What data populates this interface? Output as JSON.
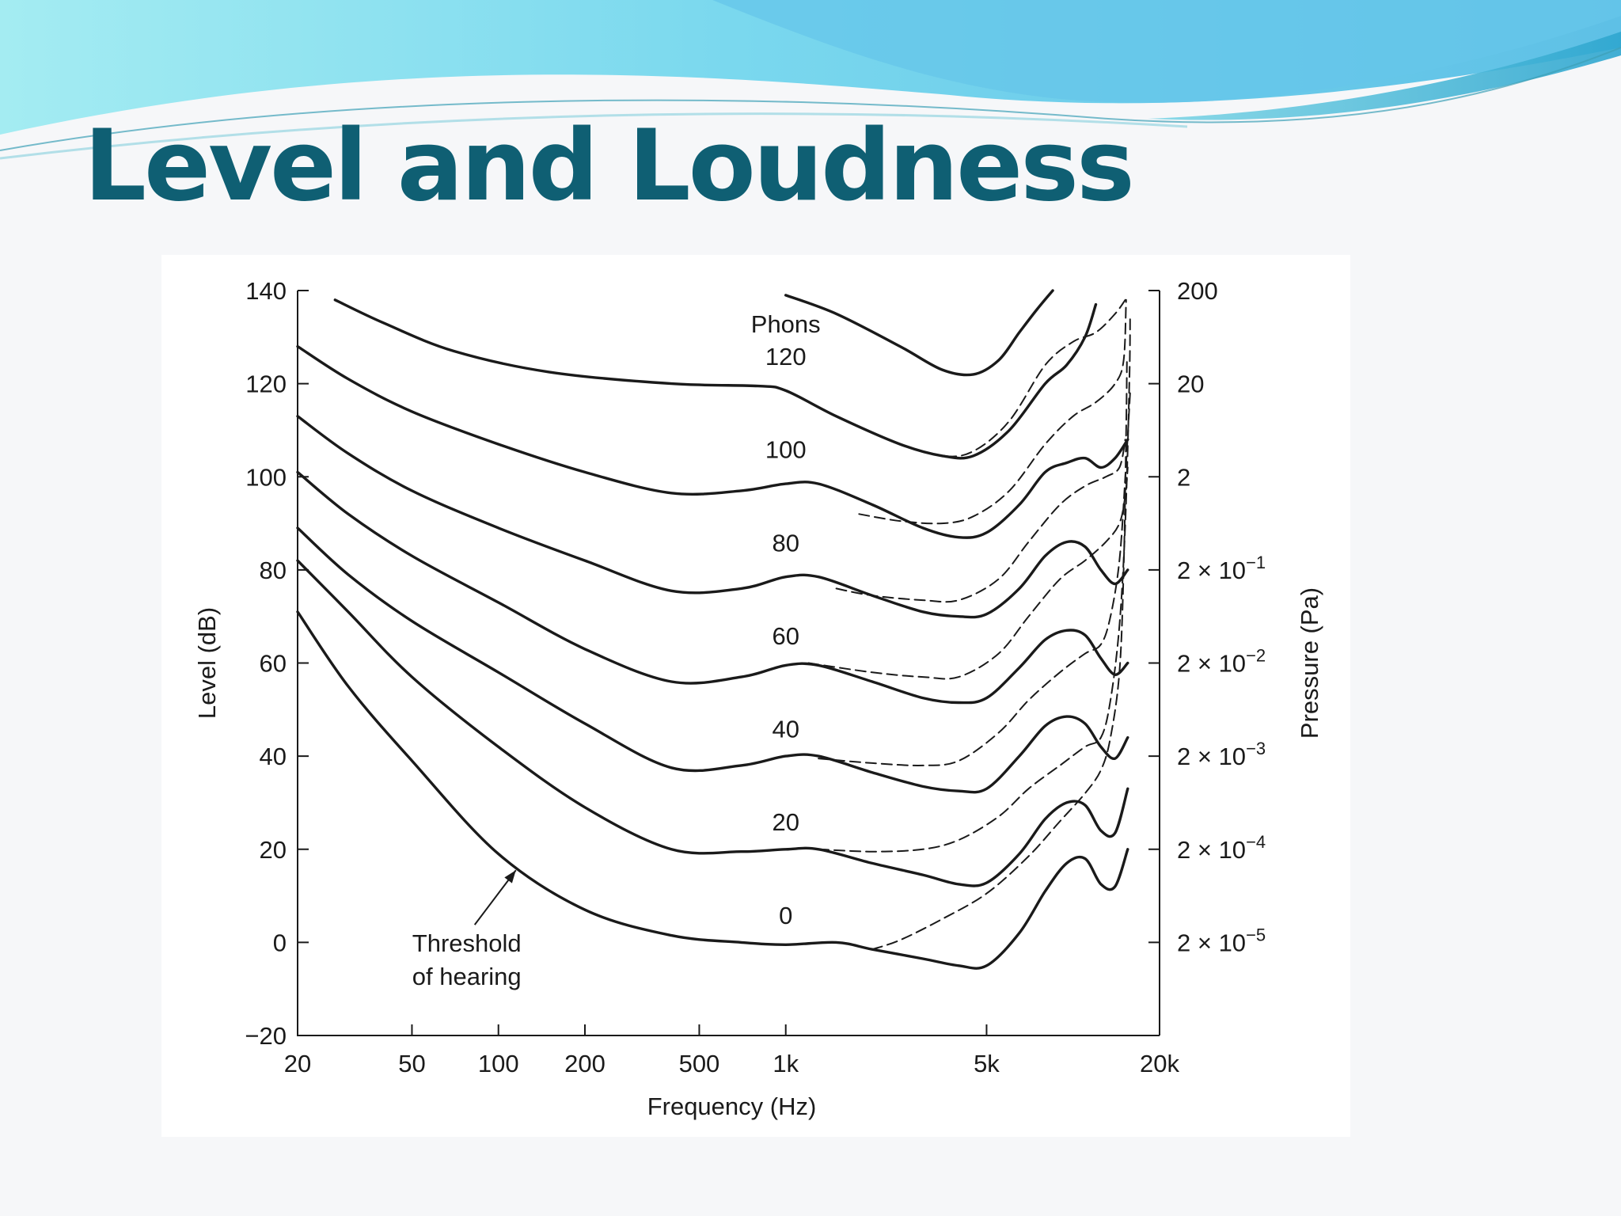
{
  "slide": {
    "title": "Level and Loudness",
    "theme_color": "#0f5f73",
    "banner_colors": [
      "#8fe6f0",
      "#5bc3e8",
      "#2aa8c9"
    ]
  },
  "chart_data": {
    "type": "line",
    "title": "",
    "xlabel": "Frequency (Hz)",
    "ylabel": "Level (dB)",
    "y2label": "Pressure (Pa)",
    "xscale": "log",
    "xlim": [
      20,
      20000
    ],
    "ylim": [
      -20,
      140
    ],
    "x_ticks": [
      20,
      50,
      100,
      200,
      500,
      1000,
      5000,
      20000
    ],
    "x_tick_labels": [
      "20",
      "50",
      "100",
      "200",
      "500",
      "1k",
      "5k",
      "20k"
    ],
    "y_ticks": [
      -20,
      0,
      20,
      40,
      60,
      80,
      100,
      120,
      140
    ],
    "y_tick_labels": [
      "−20",
      "0",
      "20",
      "40",
      "60",
      "80",
      "100",
      "120",
      "140"
    ],
    "y2_ticks": [
      {
        "db": 140,
        "mantissa": "200",
        "exponent": ""
      },
      {
        "db": 120,
        "mantissa": "20",
        "exponent": ""
      },
      {
        "db": 100,
        "mantissa": "2",
        "exponent": ""
      },
      {
        "db": 80,
        "mantissa": "2 × 10",
        "exponent": "−1"
      },
      {
        "db": 60,
        "mantissa": "2 × 10",
        "exponent": "−2"
      },
      {
        "db": 40,
        "mantissa": "2 × 10",
        "exponent": "−3"
      },
      {
        "db": 20,
        "mantissa": "2 × 10",
        "exponent": "−4"
      },
      {
        "db": 0,
        "mantissa": "2 × 10",
        "exponent": "−5"
      }
    ],
    "grid": false,
    "legend": null,
    "series_header": "Phons",
    "series": [
      {
        "name": "120",
        "label_at": [
          1000,
          124
        ],
        "style": "solid",
        "points": [
          [
            27,
            138
          ],
          [
            40,
            133
          ],
          [
            70,
            127
          ],
          [
            150,
            122.5
          ],
          [
            400,
            120
          ],
          [
            800,
            119.5
          ],
          [
            1000,
            118.5
          ],
          [
            1500,
            113
          ],
          [
            2500,
            107
          ],
          [
            3500,
            104.5
          ],
          [
            4500,
            104.5
          ],
          [
            6000,
            110
          ],
          [
            8000,
            120
          ],
          [
            9500,
            124
          ],
          [
            11000,
            130
          ],
          [
            12000,
            137
          ]
        ]
      },
      {
        "name": "120",
        "style": "solid",
        "points": [
          [
            1000,
            139
          ],
          [
            1500,
            135
          ],
          [
            2500,
            128
          ],
          [
            3500,
            123
          ],
          [
            4500,
            122
          ],
          [
            5500,
            125
          ],
          [
            6500,
            131
          ],
          [
            7500,
            136
          ],
          [
            8500,
            140
          ]
        ]
      },
      {
        "name": "100",
        "label_at": [
          1000,
          104
        ],
        "style": "solid",
        "points": [
          [
            20,
            128
          ],
          [
            30,
            121
          ],
          [
            50,
            114
          ],
          [
            100,
            107
          ],
          [
            200,
            101
          ],
          [
            400,
            96.5
          ],
          [
            700,
            97
          ],
          [
            1000,
            98.5
          ],
          [
            1300,
            98.5
          ],
          [
            2000,
            94
          ],
          [
            3000,
            89
          ],
          [
            4000,
            87
          ],
          [
            5000,
            88
          ],
          [
            6500,
            94
          ],
          [
            8000,
            101
          ],
          [
            9500,
            103
          ],
          [
            11000,
            104
          ],
          [
            12500,
            102
          ],
          [
            14000,
            104
          ],
          [
            15500,
            108
          ]
        ]
      },
      {
        "name": "80",
        "label_at": [
          1000,
          84
        ],
        "style": "solid",
        "points": [
          [
            20,
            113
          ],
          [
            30,
            105
          ],
          [
            50,
            97
          ],
          [
            100,
            89
          ],
          [
            200,
            82
          ],
          [
            400,
            75.5
          ],
          [
            700,
            76
          ],
          [
            1000,
            78.5
          ],
          [
            1300,
            78.5
          ],
          [
            2000,
            74.5
          ],
          [
            3000,
            71
          ],
          [
            4000,
            70
          ],
          [
            5000,
            70.5
          ],
          [
            6500,
            76
          ],
          [
            8000,
            83
          ],
          [
            9500,
            86
          ],
          [
            11000,
            85
          ],
          [
            12500,
            80
          ],
          [
            14000,
            77
          ],
          [
            15500,
            80
          ]
        ]
      },
      {
        "name": "60",
        "label_at": [
          1000,
          64
        ],
        "style": "solid",
        "points": [
          [
            20,
            101
          ],
          [
            30,
            92
          ],
          [
            50,
            83
          ],
          [
            100,
            73
          ],
          [
            200,
            63
          ],
          [
            400,
            56
          ],
          [
            700,
            57
          ],
          [
            1000,
            59.5
          ],
          [
            1300,
            59.5
          ],
          [
            2000,
            56
          ],
          [
            3000,
            52.5
          ],
          [
            4000,
            51.5
          ],
          [
            5000,
            52.5
          ],
          [
            6500,
            59
          ],
          [
            8000,
            65
          ],
          [
            9500,
            67
          ],
          [
            11000,
            66
          ],
          [
            12500,
            61
          ],
          [
            14000,
            57.5
          ],
          [
            15500,
            60
          ]
        ]
      },
      {
        "name": "40",
        "label_at": [
          1000,
          44
        ],
        "style": "solid",
        "points": [
          [
            20,
            89
          ],
          [
            30,
            79
          ],
          [
            50,
            69
          ],
          [
            100,
            58
          ],
          [
            200,
            47
          ],
          [
            400,
            37.5
          ],
          [
            700,
            38
          ],
          [
            1000,
            40
          ],
          [
            1300,
            40
          ],
          [
            2000,
            36.5
          ],
          [
            3000,
            33.5
          ],
          [
            4000,
            32.5
          ],
          [
            5000,
            33
          ],
          [
            6500,
            40
          ],
          [
            8000,
            46.5
          ],
          [
            9500,
            48.5
          ],
          [
            11000,
            47
          ],
          [
            12500,
            42
          ],
          [
            14000,
            39.5
          ],
          [
            15500,
            44
          ]
        ]
      },
      {
        "name": "20",
        "label_at": [
          1000,
          24
        ],
        "style": "solid",
        "points": [
          [
            20,
            82
          ],
          [
            30,
            71
          ],
          [
            50,
            57
          ],
          [
            100,
            42
          ],
          [
            200,
            29
          ],
          [
            400,
            20
          ],
          [
            700,
            19.5
          ],
          [
            1000,
            20
          ],
          [
            1300,
            20
          ],
          [
            2000,
            17
          ],
          [
            3000,
            14.5
          ],
          [
            4000,
            12.5
          ],
          [
            5000,
            12.8
          ],
          [
            6500,
            19
          ],
          [
            8000,
            26.5
          ],
          [
            9500,
            30
          ],
          [
            11000,
            29.5
          ],
          [
            12500,
            24
          ],
          [
            14000,
            23.5
          ],
          [
            15500,
            33
          ]
        ]
      },
      {
        "name": "0",
        "label_at": [
          1000,
          4
        ],
        "style": "solid",
        "points": [
          [
            20,
            71
          ],
          [
            30,
            55
          ],
          [
            50,
            39
          ],
          [
            100,
            19
          ],
          [
            200,
            7
          ],
          [
            400,
            1.5
          ],
          [
            700,
            0
          ],
          [
            1000,
            -0.5
          ],
          [
            1500,
            0
          ],
          [
            2000,
            -1.5
          ],
          [
            3000,
            -3.5
          ],
          [
            4000,
            -5
          ],
          [
            5000,
            -5
          ],
          [
            6500,
            2
          ],
          [
            8000,
            11
          ],
          [
            9500,
            17
          ],
          [
            11000,
            18
          ],
          [
            12500,
            12.5
          ],
          [
            14000,
            12
          ],
          [
            15500,
            20
          ]
        ]
      },
      {
        "name": "120 (alt)",
        "style": "dashed",
        "points": [
          [
            2500,
            107
          ],
          [
            3500,
            104.5
          ],
          [
            4500,
            105.5
          ],
          [
            6000,
            112
          ],
          [
            8000,
            124
          ],
          [
            10000,
            129
          ],
          [
            12000,
            131
          ],
          [
            14000,
            135
          ],
          [
            15200,
            138
          ]
        ]
      },
      {
        "name": "100 (alt)",
        "style": "dashed",
        "points": [
          [
            1800,
            92
          ],
          [
            2500,
            90.5
          ],
          [
            3500,
            90
          ],
          [
            4500,
            91.5
          ],
          [
            6000,
            97
          ],
          [
            8000,
            107
          ],
          [
            10000,
            113
          ],
          [
            12000,
            116
          ],
          [
            14000,
            120
          ],
          [
            15000,
            125
          ],
          [
            15300,
            138
          ]
        ]
      },
      {
        "name": "80 (alt)",
        "style": "dashed",
        "points": [
          [
            1500,
            76
          ],
          [
            2000,
            74.5
          ],
          [
            3000,
            73.5
          ],
          [
            4000,
            73.5
          ],
          [
            5500,
            78
          ],
          [
            7000,
            86
          ],
          [
            9000,
            94
          ],
          [
            11000,
            98
          ],
          [
            13000,
            100
          ],
          [
            14500,
            102
          ],
          [
            15200,
            108
          ]
        ]
      },
      {
        "name": "60 (alt)",
        "style": "dashed",
        "points": [
          [
            1200,
            60
          ],
          [
            2000,
            58
          ],
          [
            3000,
            57
          ],
          [
            4000,
            57
          ],
          [
            5500,
            62
          ],
          [
            7000,
            70
          ],
          [
            9000,
            78
          ],
          [
            11000,
            82
          ],
          [
            13000,
            86
          ],
          [
            14500,
            90
          ],
          [
            15200,
            96
          ],
          [
            15500,
            102
          ]
        ]
      },
      {
        "name": "40 (alt)",
        "style": "dashed",
        "points": [
          [
            1300,
            39.5
          ],
          [
            2000,
            38.5
          ],
          [
            3000,
            38
          ],
          [
            4000,
            39
          ],
          [
            5500,
            45
          ],
          [
            7000,
            52
          ],
          [
            9000,
            58
          ],
          [
            11000,
            62
          ],
          [
            12500,
            64
          ],
          [
            13500,
            70
          ],
          [
            14500,
            82
          ],
          [
            15200,
            100
          ],
          [
            15800,
            118
          ]
        ]
      },
      {
        "name": "20 (alt)",
        "style": "dashed",
        "points": [
          [
            1300,
            20
          ],
          [
            2000,
            19.5
          ],
          [
            3000,
            20
          ],
          [
            4000,
            22
          ],
          [
            5500,
            27
          ],
          [
            7000,
            33
          ],
          [
            9000,
            38
          ],
          [
            11000,
            42
          ],
          [
            12500,
            44
          ],
          [
            13500,
            52
          ],
          [
            14500,
            68
          ],
          [
            15200,
            90
          ],
          [
            15700,
            120
          ],
          [
            15800,
            135
          ]
        ]
      },
      {
        "name": "0 (alt)",
        "style": "dashed",
        "points": [
          [
            2000,
            -1.5
          ],
          [
            2500,
            0.5
          ],
          [
            3500,
            5
          ],
          [
            5000,
            10.5
          ],
          [
            7000,
            18.5
          ],
          [
            9000,
            26
          ],
          [
            11000,
            32
          ],
          [
            12500,
            37
          ],
          [
            13500,
            44
          ],
          [
            14500,
            58
          ],
          [
            15000,
            80
          ],
          [
            15300,
            110
          ],
          [
            15400,
            125
          ]
        ]
      }
    ],
    "annotations": [
      {
        "text_lines": [
          "Threshold",
          "of hearing"
        ],
        "text_at": [
          100,
          -2
        ],
        "arrow_to": [
          115,
          15.5
        ]
      }
    ]
  }
}
